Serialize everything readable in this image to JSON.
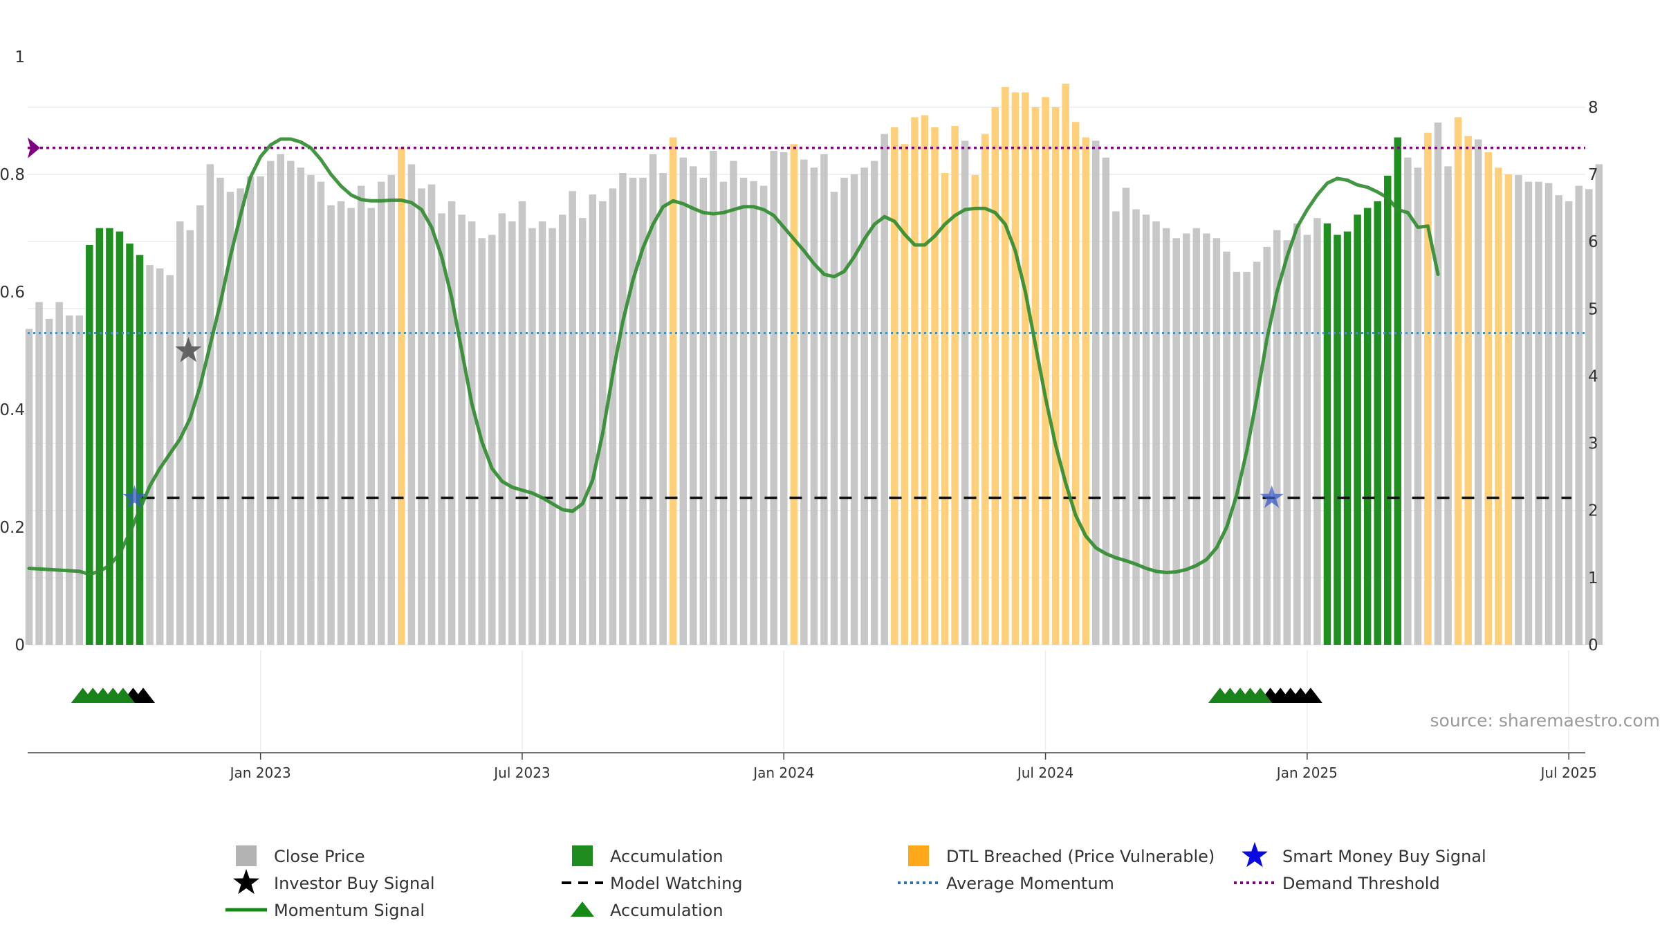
{
  "source": "source: sharemaestro.com",
  "chart_data": {
    "type": "bar",
    "left_axis": {
      "range": [
        0,
        1
      ],
      "ticks": [
        {
          "v": 0,
          "label": "0"
        },
        {
          "v": 0.2,
          "label": "0.2"
        },
        {
          "v": 0.4,
          "label": "0.4"
        },
        {
          "v": 0.6,
          "label": "0.6"
        },
        {
          "v": 0.8,
          "label": "0.8"
        },
        {
          "v": 1,
          "label": "1"
        }
      ]
    },
    "right_axis": {
      "range": [
        0,
        8.75
      ],
      "ticks": [
        {
          "v": 0,
          "label": "0"
        },
        {
          "v": 1,
          "label": "1"
        },
        {
          "v": 2,
          "label": "2"
        },
        {
          "v": 3,
          "label": "3"
        },
        {
          "v": 4,
          "label": "4"
        },
        {
          "v": 5,
          "label": "5"
        },
        {
          "v": 6,
          "label": "6"
        },
        {
          "v": 7,
          "label": "7"
        },
        {
          "v": 8,
          "label": "8"
        }
      ]
    },
    "x_ticks": [
      {
        "week": 23,
        "label": "Jan 2023"
      },
      {
        "week": 49,
        "label": "Jul 2023"
      },
      {
        "week": 75,
        "label": "Jan 2024"
      },
      {
        "week": 101,
        "label": "Jul 2024"
      },
      {
        "week": 127,
        "label": "Jan 2025"
      },
      {
        "week": 153,
        "label": "Jul 2025"
      }
    ],
    "legend_position": "bottom",
    "close_price": [
      4.7,
      5.1,
      4.85,
      5.1,
      4.9,
      4.9,
      5.95,
      6.2,
      6.2,
      6.15,
      5.97,
      5.8,
      5.65,
      5.6,
      5.5,
      6.3,
      6.17,
      6.54,
      7.15,
      6.95,
      6.74,
      6.79,
      6.97,
      6.97,
      7.2,
      7.3,
      7.2,
      7.1,
      6.99,
      6.89,
      6.54,
      6.6,
      6.5,
      6.83,
      6.5,
      6.89,
      6.99,
      7.4,
      7.15,
      6.79,
      6.85,
      6.42,
      6.6,
      6.4,
      6.3,
      6.05,
      6.1,
      6.42,
      6.3,
      6.6,
      6.2,
      6.3,
      6.2,
      6.4,
      6.75,
      6.35,
      6.7,
      6.6,
      6.79,
      7.02,
      6.95,
      6.95,
      7.3,
      7.02,
      7.55,
      7.25,
      7.12,
      6.95,
      7.35,
      6.89,
      7.2,
      6.95,
      6.9,
      6.83,
      7.35,
      7.33,
      7.45,
      7.22,
      7.1,
      7.3,
      6.74,
      6.95,
      7.0,
      7.1,
      7.2,
      7.6,
      7.7,
      7.45,
      7.85,
      7.88,
      7.7,
      7.02,
      7.72,
      7.5,
      6.99,
      7.6,
      8.0,
      8.3,
      8.22,
      8.22,
      8.0,
      8.15,
      8.0,
      8.35,
      7.78,
      7.55,
      7.5,
      7.25,
      6.45,
      6.8,
      6.48,
      6.4,
      6.3,
      6.2,
      6.05,
      6.12,
      6.2,
      6.12,
      6.05,
      5.85,
      5.55,
      5.55,
      5.7,
      5.92,
      6.17,
      6.02,
      6.27,
      6.1,
      6.35,
      6.27,
      6.1,
      6.15,
      6.4,
      6.5,
      6.6,
      6.98,
      7.55,
      7.25,
      7.1,
      7.62,
      7.77,
      7.12,
      7.85,
      7.57,
      7.52,
      7.33,
      7.1,
      7.0,
      6.99,
      6.89,
      6.89,
      6.87,
      6.69,
      6.6,
      6.83,
      6.78,
      7.15
    ],
    "bar_category": [
      "close",
      "close",
      "close",
      "close",
      "close",
      "close",
      "acc",
      "acc",
      "acc",
      "acc",
      "acc",
      "acc",
      "close",
      "close",
      "close",
      "close",
      "close",
      "close",
      "close",
      "close",
      "close",
      "close",
      "close",
      "close",
      "close",
      "close",
      "close",
      "close",
      "close",
      "close",
      "close",
      "close",
      "close",
      "close",
      "close",
      "close",
      "close",
      "dtl",
      "close",
      "close",
      "close",
      "close",
      "close",
      "close",
      "close",
      "close",
      "close",
      "close",
      "close",
      "close",
      "close",
      "close",
      "close",
      "close",
      "close",
      "close",
      "close",
      "close",
      "close",
      "close",
      "close",
      "close",
      "close",
      "close",
      "dtl",
      "close",
      "close",
      "close",
      "close",
      "close",
      "close",
      "close",
      "close",
      "close",
      "close",
      "close",
      "dtl",
      "close",
      "close",
      "close",
      "close",
      "close",
      "close",
      "close",
      "close",
      "close",
      "dtl",
      "dtl",
      "dtl",
      "dtl",
      "dtl",
      "dtl",
      "dtl",
      "close",
      "dtl",
      "dtl",
      "dtl",
      "dtl",
      "dtl",
      "dtl",
      "dtl",
      "dtl",
      "dtl",
      "dtl",
      "dtl",
      "dtl",
      "close",
      "close",
      "close",
      "close",
      "close",
      "close",
      "close",
      "close",
      "close",
      "close",
      "close",
      "close",
      "close",
      "close",
      "close",
      "close",
      "close",
      "close",
      "close",
      "close",
      "close",
      "close",
      "close",
      "acc",
      "acc",
      "acc",
      "acc",
      "acc",
      "acc",
      "acc",
      "acc",
      "close",
      "close",
      "dtl",
      "close",
      "close",
      "dtl",
      "dtl",
      "close",
      "dtl",
      "dtl",
      "dtl",
      "close",
      "close",
      "close",
      "close",
      "close",
      "close",
      "close",
      "close",
      "close",
      "close",
      "close",
      "close"
    ],
    "momentum_signal": [
      [
        0,
        0.13
      ],
      [
        5,
        0.125
      ],
      [
        6,
        0.12
      ],
      [
        7,
        0.125
      ],
      [
        8,
        0.135
      ],
      [
        9,
        0.155
      ],
      [
        10,
        0.19
      ],
      [
        11,
        0.23
      ],
      [
        12,
        0.27
      ],
      [
        13,
        0.3
      ],
      [
        14,
        0.325
      ],
      [
        15,
        0.35
      ],
      [
        16,
        0.385
      ],
      [
        17,
        0.44
      ],
      [
        18,
        0.51
      ],
      [
        19,
        0.58
      ],
      [
        20,
        0.66
      ],
      [
        21,
        0.73
      ],
      [
        22,
        0.795
      ],
      [
        23,
        0.83
      ],
      [
        24,
        0.85
      ],
      [
        25,
        0.86
      ],
      [
        26,
        0.86
      ],
      [
        27,
        0.855
      ],
      [
        28,
        0.845
      ],
      [
        29,
        0.825
      ],
      [
        30,
        0.8
      ],
      [
        31,
        0.78
      ],
      [
        32,
        0.765
      ],
      [
        33,
        0.757
      ],
      [
        34,
        0.755
      ],
      [
        35,
        0.755
      ],
      [
        36,
        0.756
      ],
      [
        37,
        0.756
      ],
      [
        38,
        0.752
      ],
      [
        39,
        0.74
      ],
      [
        40,
        0.71
      ],
      [
        41,
        0.66
      ],
      [
        42,
        0.59
      ],
      [
        43,
        0.5
      ],
      [
        44,
        0.41
      ],
      [
        45,
        0.345
      ],
      [
        46,
        0.3
      ],
      [
        47,
        0.278
      ],
      [
        48,
        0.268
      ],
      [
        49,
        0.263
      ],
      [
        50,
        0.258
      ],
      [
        51,
        0.25
      ],
      [
        52,
        0.24
      ],
      [
        53,
        0.23
      ],
      [
        54,
        0.227
      ],
      [
        55,
        0.24
      ],
      [
        56,
        0.28
      ],
      [
        57,
        0.36
      ],
      [
        58,
        0.46
      ],
      [
        59,
        0.55
      ],
      [
        60,
        0.62
      ],
      [
        61,
        0.675
      ],
      [
        62,
        0.715
      ],
      [
        63,
        0.745
      ],
      [
        64,
        0.755
      ],
      [
        65,
        0.75
      ],
      [
        66,
        0.742
      ],
      [
        67,
        0.735
      ],
      [
        68,
        0.733
      ],
      [
        69,
        0.735
      ],
      [
        70,
        0.74
      ],
      [
        71,
        0.745
      ],
      [
        72,
        0.745
      ],
      [
        73,
        0.74
      ],
      [
        74,
        0.73
      ],
      [
        75,
        0.71
      ],
      [
        76,
        0.69
      ],
      [
        77,
        0.67
      ],
      [
        78,
        0.648
      ],
      [
        79,
        0.63
      ],
      [
        80,
        0.626
      ],
      [
        81,
        0.635
      ],
      [
        82,
        0.66
      ],
      [
        83,
        0.69
      ],
      [
        84,
        0.715
      ],
      [
        85,
        0.728
      ],
      [
        86,
        0.72
      ],
      [
        87,
        0.698
      ],
      [
        88,
        0.68
      ],
      [
        89,
        0.68
      ],
      [
        90,
        0.695
      ],
      [
        91,
        0.715
      ],
      [
        92,
        0.73
      ],
      [
        93,
        0.74
      ],
      [
        94,
        0.742
      ],
      [
        95,
        0.742
      ],
      [
        96,
        0.735
      ],
      [
        97,
        0.715
      ],
      [
        98,
        0.67
      ],
      [
        99,
        0.6
      ],
      [
        100,
        0.51
      ],
      [
        101,
        0.42
      ],
      [
        102,
        0.34
      ],
      [
        103,
        0.275
      ],
      [
        104,
        0.22
      ],
      [
        105,
        0.185
      ],
      [
        106,
        0.165
      ],
      [
        107,
        0.155
      ],
      [
        108,
        0.148
      ],
      [
        109,
        0.143
      ],
      [
        110,
        0.137
      ],
      [
        111,
        0.13
      ],
      [
        112,
        0.125
      ],
      [
        113,
        0.123
      ],
      [
        114,
        0.124
      ],
      [
        115,
        0.128
      ],
      [
        116,
        0.135
      ],
      [
        117,
        0.145
      ],
      [
        118,
        0.165
      ],
      [
        119,
        0.2
      ],
      [
        120,
        0.255
      ],
      [
        121,
        0.33
      ],
      [
        122,
        0.42
      ],
      [
        123,
        0.52
      ],
      [
        124,
        0.6
      ],
      [
        125,
        0.66
      ],
      [
        126,
        0.71
      ],
      [
        127,
        0.74
      ],
      [
        128,
        0.765
      ],
      [
        129,
        0.785
      ],
      [
        130,
        0.793
      ],
      [
        131,
        0.79
      ],
      [
        132,
        0.782
      ],
      [
        133,
        0.778
      ],
      [
        134,
        0.77
      ],
      [
        135,
        0.76
      ],
      [
        136,
        0.74
      ],
      [
        137,
        0.735
      ],
      [
        138,
        0.71
      ],
      [
        139,
        0.712
      ],
      [
        140,
        0.63
      ]
    ],
    "average_momentum": 0.53,
    "model_watching": 0.25,
    "demand_threshold": 0.845,
    "investor_buy_signal": [
      {
        "week": 17,
        "value": 0.5
      }
    ],
    "smart_money_buy_signal": [
      {
        "week": 10,
        "value": 0.25
      },
      {
        "week": 123,
        "value": 0.25
      }
    ],
    "accumulation_markers": {
      "green": [
        5,
        6,
        7,
        8,
        9,
        118,
        119,
        120,
        121,
        122
      ],
      "black": [
        10,
        11,
        123,
        124,
        125,
        126,
        127
      ]
    },
    "legend": [
      {
        "label": "Close Price",
        "kind": "square",
        "color": "#b3b3b3"
      },
      {
        "label": "Accumulation",
        "kind": "square",
        "color": "#1e8c1e"
      },
      {
        "label": "DTL Breached (Price Vulnerable)",
        "kind": "square",
        "color": "#ffa91a"
      },
      {
        "label": "Smart Money Buy Signal",
        "kind": "star",
        "color": "#0a0ae0"
      },
      {
        "label": "Investor Buy Signal",
        "kind": "star",
        "color": "#000000"
      },
      {
        "label": "Model Watching",
        "kind": "dash",
        "color": "#000000"
      },
      {
        "label": "Average Momentum",
        "kind": "dot",
        "color": "#2f6fb3"
      },
      {
        "label": "Demand Threshold",
        "kind": "dot",
        "color": "#800080"
      },
      {
        "label": "Momentum Signal",
        "kind": "line",
        "color": "#138a13"
      },
      {
        "label": "Accumulation",
        "kind": "triangle",
        "color": "#138a13"
      }
    ]
  }
}
